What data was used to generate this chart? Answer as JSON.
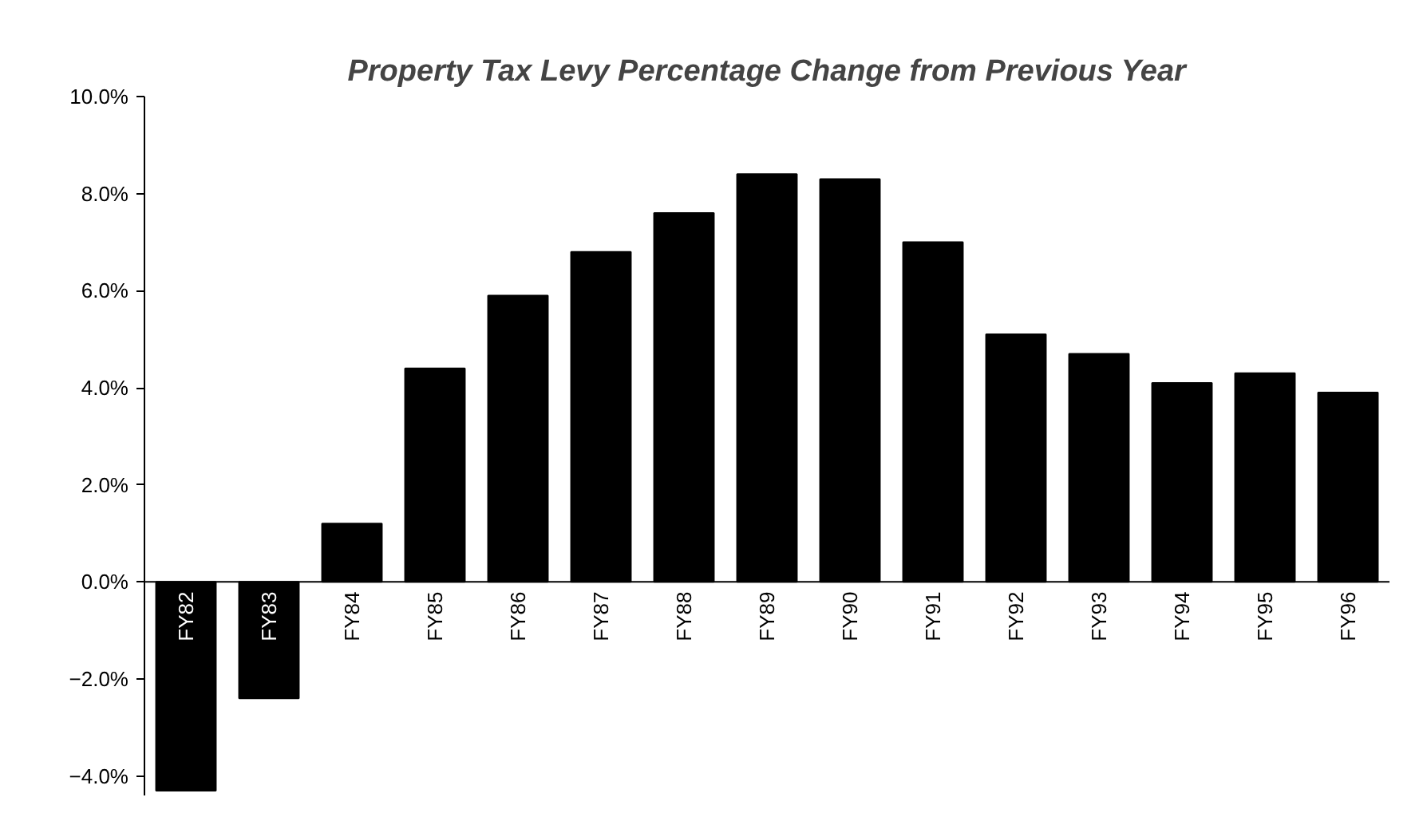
{
  "chart_data": {
    "type": "bar",
    "title": "Property Tax Levy Percentage Change from Previous Year",
    "categories": [
      "FY82",
      "FY83",
      "FY84",
      "FY85",
      "FY86",
      "FY87",
      "FY88",
      "FY89",
      "FY90",
      "FY91",
      "FY92",
      "FY93",
      "FY94",
      "FY95",
      "FY96"
    ],
    "values": [
      -4.3,
      -2.4,
      1.2,
      4.4,
      5.9,
      6.8,
      7.6,
      8.4,
      8.3,
      7.0,
      5.1,
      4.7,
      4.1,
      4.3,
      3.9
    ],
    "color": "#000000",
    "ylim": [
      -4.4,
      10
    ],
    "yticks": [
      {
        "value": -4,
        "label": "−4.0%"
      },
      {
        "value": -2,
        "label": "−2.0%"
      },
      {
        "value": 0,
        "label": "0.0%"
      },
      {
        "value": 2,
        "label": "2.0%"
      },
      {
        "value": 4,
        "label": "4.0%"
      },
      {
        "value": 6,
        "label": "6.0%"
      },
      {
        "value": 8,
        "label": "8.0%"
      },
      {
        "value": 10,
        "label": "10.0%"
      }
    ],
    "grid": false
  }
}
